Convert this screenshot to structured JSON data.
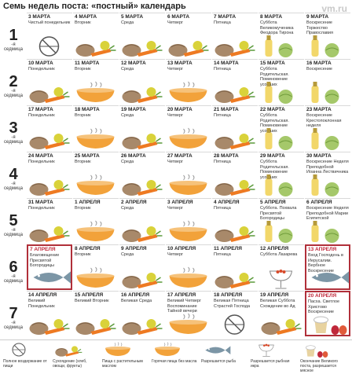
{
  "title": "Семь недель поста: «постный» календарь",
  "watermark": "vm.ru",
  "week_suffix": "-я седмица",
  "weeks": [
    {
      "num": "1",
      "days": [
        {
          "date": "3 МАРТА",
          "name": "Чистый понедельник",
          "food": "none"
        },
        {
          "date": "4 МАРТА",
          "name": "Вторник",
          "food": "dry"
        },
        {
          "date": "5 МАРТА",
          "name": "Среда",
          "food": "dry"
        },
        {
          "date": "6 МАРТА",
          "name": "Четверг",
          "food": "dry"
        },
        {
          "date": "7 МАРТА",
          "name": "Пятница",
          "food": "dry"
        },
        {
          "date": "8 МАРТА",
          "name": "Суббота Великомученика Феодора Тирона",
          "food": "oil"
        },
        {
          "date": "9 МАРТА",
          "name": "Воскресение Торжество Православия",
          "food": "oil"
        }
      ]
    },
    {
      "num": "2",
      "days": [
        {
          "date": "10 МАРТА",
          "name": "Понедельник",
          "food": "dry"
        },
        {
          "date": "11 МАРТА",
          "name": "Вторник",
          "food": "hot"
        },
        {
          "date": "12 МАРТА",
          "name": "Среда",
          "food": "dry"
        },
        {
          "date": "13 МАРТА",
          "name": "Четверг",
          "food": "hot"
        },
        {
          "date": "14 МАРТА",
          "name": "Пятница",
          "food": "dry"
        },
        {
          "date": "15 МАРТА",
          "name": "Суббота Родительская. Поминовение усопших",
          "food": "oil"
        },
        {
          "date": "16 МАРТА",
          "name": "Воскресение",
          "food": "oil"
        }
      ]
    },
    {
      "num": "3",
      "days": [
        {
          "date": "17 МАРТА",
          "name": "Понедельник",
          "food": "dry"
        },
        {
          "date": "18 МАРТА",
          "name": "Вторник",
          "food": "hot"
        },
        {
          "date": "19 МАРТА",
          "name": "Среда",
          "food": "dry"
        },
        {
          "date": "20 МАРТА",
          "name": "Четверг",
          "food": "hot"
        },
        {
          "date": "21 МАРТА",
          "name": "Пятница",
          "food": "dry"
        },
        {
          "date": "22 МАРТА",
          "name": "Суббота Родительская. Поминовение усопших",
          "food": "oil"
        },
        {
          "date": "23 МАРТА",
          "name": "Воскресение Крестопоклонная неделя",
          "food": "oil"
        }
      ]
    },
    {
      "num": "4",
      "days": [
        {
          "date": "24 МАРТА",
          "name": "Понедельник",
          "food": "dry"
        },
        {
          "date": "25 МАРТА",
          "name": "Вторник",
          "food": "hot"
        },
        {
          "date": "26 МАРТА",
          "name": "Среда",
          "food": "dry"
        },
        {
          "date": "27 МАРТА",
          "name": "Четверг",
          "food": "hot"
        },
        {
          "date": "28 МАРТА",
          "name": "Пятница",
          "food": "dry"
        },
        {
          "date": "29 МАРТА",
          "name": "Суббота Родительская. Поминовение усопших",
          "food": "oil"
        },
        {
          "date": "30 МАРТА",
          "name": "Воскресение Неделя Преподобной Иоанна Лествичника",
          "food": "oil"
        }
      ]
    },
    {
      "num": "5",
      "days": [
        {
          "date": "31 МАРТА",
          "name": "Понедельник",
          "food": "dry"
        },
        {
          "date": "1 АПРЕЛЯ",
          "name": "Вторник",
          "food": "hot"
        },
        {
          "date": "2 АПРЕЛЯ",
          "name": "Среда",
          "food": "dry"
        },
        {
          "date": "3 АПРЕЛЯ",
          "name": "Четверг",
          "food": "hot"
        },
        {
          "date": "4 АПРЕЛЯ",
          "name": "Пятница",
          "food": "dry"
        },
        {
          "date": "5 АПРЕЛЯ",
          "name": "Суббота. Похвала Пресвятой Богородицы",
          "food": "oil"
        },
        {
          "date": "6 АПРЕЛЯ",
          "name": "Воскресение Неделя Преподобной Марии Египетской",
          "food": "oil"
        }
      ]
    },
    {
      "num": "6",
      "days": [
        {
          "date": "7 АПРЕЛЯ",
          "name": "Благовещение Пресвятой Богородицы",
          "food": "fish",
          "hl": true
        },
        {
          "date": "8 АПРЕЛЯ",
          "name": "Вторник",
          "food": "hot"
        },
        {
          "date": "9 АПРЕЛЯ",
          "name": "Среда",
          "food": "dry"
        },
        {
          "date": "10 АПРЕЛЯ",
          "name": "Четверг",
          "food": "hot"
        },
        {
          "date": "11 АПРЕЛЯ",
          "name": "Пятница",
          "food": "dry"
        },
        {
          "date": "12 АПРЕЛЯ",
          "name": "Суббота Лазарева",
          "food": "caviar"
        },
        {
          "date": "13 АПРЕЛЯ",
          "name": "Вход Господень в Иерусалим. Вербное Воскресение",
          "food": "fish",
          "hl": true
        }
      ]
    },
    {
      "num": "7",
      "days": [
        {
          "date": "14 АПРЕЛЯ",
          "name": "Великий Понедельник",
          "food": "dry"
        },
        {
          "date": "15 АПРЕЛЯ",
          "name": "Великий Вторник",
          "food": "dry"
        },
        {
          "date": "16 АПРЕЛЯ",
          "name": "Великая Среда",
          "food": "dry"
        },
        {
          "date": "17 АПРЕЛЯ",
          "name": "Великий Четверг Воспоминание Тайной вечери",
          "food": "hot"
        },
        {
          "date": "18 АПРЕЛЯ",
          "name": "Великая Пятница Страстей Господа",
          "food": "none"
        },
        {
          "date": "19 АПРЕЛЯ",
          "name": "Великая Суббота Схождение во Ад",
          "food": "dry"
        },
        {
          "date": "20 АПРЕЛЯ",
          "name": "Пасха. Светлое Христово Воскресение",
          "food": "easter",
          "hl": true
        }
      ]
    }
  ],
  "legend": [
    {
      "icon": "none",
      "text": "Полное воздержание от пищи"
    },
    {
      "icon": "dry",
      "text": "Сухоядение (хлеб, овощи, фрукты)"
    },
    {
      "icon": "hot",
      "text": "Пища с растительным маслом"
    },
    {
      "icon": "hot",
      "text": "Горячая пища без масла"
    },
    {
      "icon": "fish",
      "text": "Разрешается рыба"
    },
    {
      "icon": "caviar",
      "text": "Разрешается рыбная икра"
    },
    {
      "icon": "easter",
      "text": "Окончание Великого поста, разрешается мясное"
    }
  ],
  "colors": {
    "highlight": "#b0303a",
    "carrot": "#ee7a22",
    "bread": "#a8896a",
    "apple": "#d9d23a",
    "bowl": "#f2a23a",
    "bottle": "#f2d76a",
    "cabbage": "#a5c86a",
    "fish": "#7c96a6"
  }
}
